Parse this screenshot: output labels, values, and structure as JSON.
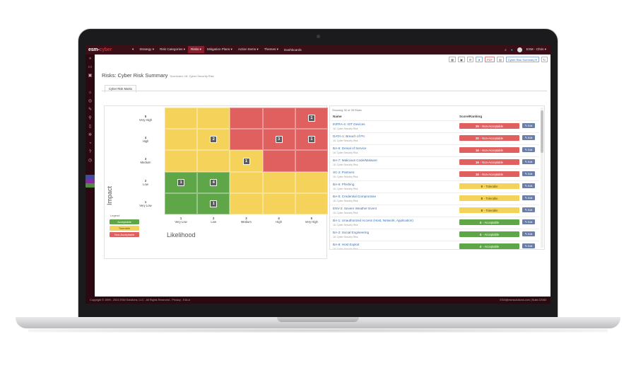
{
  "app": {
    "logo_main": "esm-",
    "logo_accent": "cyber"
  },
  "topnav": {
    "items": [
      {
        "label": "▾",
        "icon": "grid-icon"
      },
      {
        "label": "Strategy ▾"
      },
      {
        "label": "Risk Categories ▾"
      },
      {
        "label": "Risks ▾",
        "active": true
      },
      {
        "label": "Mitigation Plans ▾"
      },
      {
        "label": "Action Items ▾"
      },
      {
        "label": "Themes ▾"
      },
      {
        "label": "Dashboards"
      }
    ],
    "user": "ESM - Chris ▾"
  },
  "toolbar": {
    "pdf": "PDF",
    "dropdown": "Cyber Risk Summary ▾"
  },
  "page": {
    "title": "Risks: Cyber Risk Summary",
    "subtitle": "Scorecard: 16: Cyber Security Risk",
    "tab": "Cyber Risk Matrix"
  },
  "matrix": {
    "impact_label": "Impact",
    "likelihood_label": "Likelihood",
    "rows": [
      {
        "num": "5",
        "name": "Very High"
      },
      {
        "num": "4",
        "name": "High"
      },
      {
        "num": "3",
        "name": "Medium"
      },
      {
        "num": "2",
        "name": "Low"
      },
      {
        "num": "1",
        "name": "Very Low"
      }
    ],
    "cols": [
      {
        "num": "1",
        "name": "Very Low"
      },
      {
        "num": "2",
        "name": "Low"
      },
      {
        "num": "3",
        "name": "Medium"
      },
      {
        "num": "4",
        "name": "High"
      },
      {
        "num": "5",
        "name": "Very High"
      }
    ],
    "cells": [
      [
        "yellow",
        "yellow",
        "red",
        "red",
        "red"
      ],
      [
        "yellow",
        "yellow",
        "red",
        "red",
        "red"
      ],
      [
        "yellow",
        "yellow",
        "yellow",
        "red",
        "red"
      ],
      [
        "green",
        "green",
        "yellow",
        "yellow",
        "yellow"
      ],
      [
        "green",
        "green",
        "yellow",
        "yellow",
        "yellow"
      ]
    ],
    "counts": [
      {
        "row": 0,
        "col": 4,
        "value": "1"
      },
      {
        "row": 1,
        "col": 1,
        "value": "2"
      },
      {
        "row": 1,
        "col": 3,
        "value": "3"
      },
      {
        "row": 1,
        "col": 4,
        "value": "1"
      },
      {
        "row": 2,
        "col": 2,
        "value": "1"
      },
      {
        "row": 3,
        "col": 0,
        "value": "1"
      },
      {
        "row": 3,
        "col": 1,
        "value": "4"
      },
      {
        "row": 4,
        "col": 1,
        "value": "1"
      }
    ],
    "legend_title": "Legend",
    "legend": [
      {
        "label": "Acceptable",
        "color": "#5fa648"
      },
      {
        "label": "Tolerable",
        "color": "#f5d35a"
      },
      {
        "label": "Non-Acceptable",
        "color": "#e06060"
      }
    ],
    "colors": {
      "green": "#5fa648",
      "yellow": "#f5d35a",
      "red": "#e06060"
    }
  },
  "list": {
    "showing": "Showing 30 of 35 Risks",
    "col_name": "Name",
    "col_score": "Score/Ranking",
    "edit_label": "✎ Edit",
    "rows": [
      {
        "name": "INFRA-4: IOT Devices",
        "sub": "16: Cyber Security Risk",
        "score": "25",
        "rank": "Non-Acceptable",
        "color": "#e06060"
      },
      {
        "name": "DATA-1: Breach of PII",
        "sub": "16: Cyber Security Risk",
        "score": "20",
        "rank": "Non-Acceptable",
        "color": "#e06060"
      },
      {
        "name": "BA-6: Denial of Service",
        "sub": "16: Cyber Security Risk",
        "score": "16",
        "rank": "Non-Acceptable",
        "color": "#e06060"
      },
      {
        "name": "BA-7: Malicious Code/Malware",
        "sub": "16: Cyber Security Risk",
        "score": "16",
        "rank": "Non-Acceptable",
        "color": "#e06060"
      },
      {
        "name": "SC-2: Partners",
        "sub": "16: Cyber Security Risk",
        "score": "16",
        "rank": "Non-Acceptable",
        "color": "#e06060"
      },
      {
        "name": "BA-6: Phishing",
        "sub": "16: Cyber Security Risk",
        "score": "9",
        "rank": "Tolerable",
        "color": "#f5d35a"
      },
      {
        "name": "BA-5: Credential Compromise",
        "sub": "16: Cyber Security Risk",
        "score": "8",
        "rank": "Tolerable",
        "color": "#f5d35a"
      },
      {
        "name": "ENV-2: Severe Weather Event",
        "sub": "16: Cyber Security Risk",
        "score": "8",
        "rank": "Tolerable",
        "color": "#f5d35a"
      },
      {
        "name": "BA-1: Unauthorized Access (Host, Network, Application)",
        "sub": "16: Cyber Security Risk",
        "score": "4",
        "rank": "Acceptable",
        "color": "#5fa648"
      },
      {
        "name": "BA-2: Social Engineering",
        "sub": "16: Cyber Security Risk",
        "score": "4",
        "rank": "Acceptable",
        "color": "#5fa648"
      },
      {
        "name": "BA-8: Host Exploit",
        "sub": "16: Cyber Security Risk",
        "score": "4",
        "rank": "Acceptable",
        "color": "#5fa648"
      }
    ]
  },
  "footer": {
    "left": "Copyright © 1999 - 2021 ESM Solutions, LLC - All Rights Reserved - Privacy - EULA",
    "right": "ESM@esmsolutions.com | Build 22083"
  }
}
